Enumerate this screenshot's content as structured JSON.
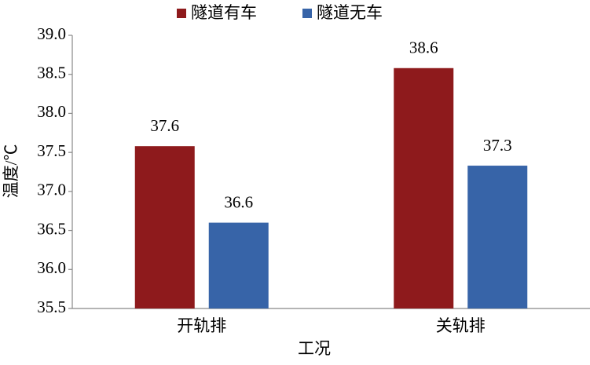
{
  "chart_data": {
    "type": "bar",
    "x_label": "工况",
    "y_label": "温度/℃",
    "categories": [
      "开轨排",
      "关轨排"
    ],
    "series": [
      {
        "name": "隧道有车",
        "color": "#8e1a1c",
        "values": [
          37.58,
          38.58
        ],
        "value_labels": [
          "37.6",
          "38.6"
        ]
      },
      {
        "name": "隧道无车",
        "color": "#3764a8",
        "values": [
          36.6,
          37.33
        ],
        "value_labels": [
          "36.6",
          "37.3"
        ]
      }
    ],
    "ylim": [
      35.5,
      39.0
    ],
    "yticks": [
      35.5,
      {
        "value": 36,
        "label": "36.0"
      },
      36.5,
      {
        "value": 37,
        "label": "37.0"
      },
      37.5,
      {
        "value": 38,
        "label": "38.0"
      },
      38.5,
      {
        "value": 39,
        "label": "39.0"
      }
    ],
    "grid": false,
    "legend": "top"
  }
}
